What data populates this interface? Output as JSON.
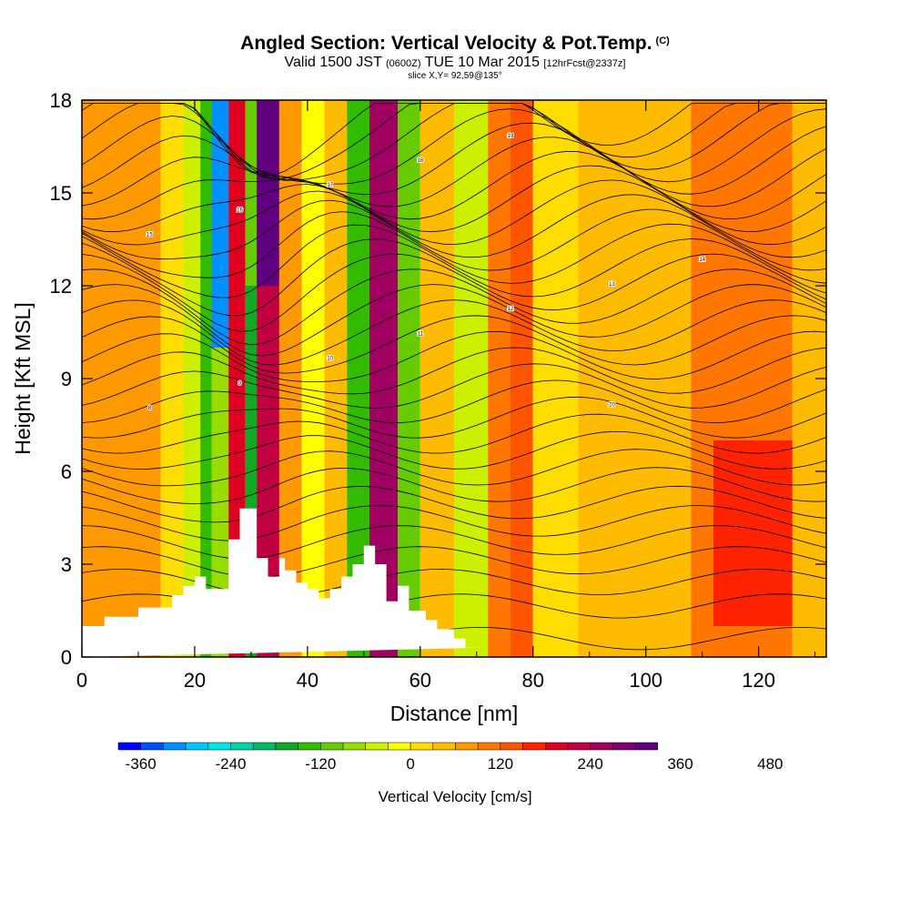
{
  "chart_data": {
    "type": "heatmap",
    "title": "Angled Section: Vertical Velocity & Pot.Temp.",
    "title_tag": "(C)",
    "subtitle_valid": "Valid 1500 JST",
    "subtitle_utc": "(0600Z)",
    "subtitle_date": "TUE 10 Mar 2015",
    "subtitle_fcst": "[12hrFcst@2337z]",
    "subtitle2": "slice X,Y= 92,59@135°",
    "xlabel": "Distance [nm]",
    "ylabel": "Height [Kft MSL]",
    "xlim": [
      0,
      132
    ],
    "ylim": [
      0,
      18
    ],
    "x_ticks": [
      "0",
      "20",
      "40",
      "60",
      "80",
      "100",
      "120"
    ],
    "y_ticks": [
      "0",
      "3",
      "6",
      "9",
      "12",
      "15",
      "18"
    ],
    "colorbar_label": "Vertical Velocity [cm/s]",
    "colorbar_ticks": [
      "-360",
      "-240",
      "-120",
      "0",
      "120",
      "240",
      "360",
      "480"
    ],
    "colorbar_levels": [
      -390,
      -360,
      -330,
      -300,
      -270,
      -240,
      -210,
      -180,
      -150,
      -120,
      -90,
      -60,
      -30,
      0,
      30,
      60,
      90,
      120,
      150,
      180,
      210,
      240,
      270,
      300,
      330,
      360,
      390,
      420,
      450,
      480,
      510
    ],
    "colorbar_colors": [
      "#0000ff",
      "#0050ff",
      "#0090ff",
      "#00c8ff",
      "#00e6e6",
      "#00d2aa",
      "#00bb66",
      "#11a822",
      "#33bb00",
      "#66cc00",
      "#99dd00",
      "#ccf000",
      "#ffff00",
      "#ffdd00",
      "#ffbb00",
      "#ff9900",
      "#ff7700",
      "#ff5500",
      "#ff2200",
      "#e00020",
      "#c00040",
      "#a00060",
      "#800070",
      "#600080"
    ],
    "terrain": {
      "x": [
        0,
        4,
        4,
        10,
        10,
        16,
        16,
        18,
        18,
        20,
        20,
        22,
        22,
        26,
        26,
        28,
        28,
        31,
        31,
        33,
        33,
        35,
        35,
        36,
        36,
        38,
        38,
        40,
        40,
        42,
        42,
        44,
        44,
        46,
        46,
        48,
        48,
        50,
        50,
        52,
        52,
        54,
        54,
        56,
        56,
        58,
        58,
        61,
        61,
        63,
        63,
        66,
        66,
        68,
        68,
        71,
        71,
        132
      ],
      "height": [
        1.0,
        1.0,
        1.3,
        1.3,
        1.6,
        1.6,
        2.0,
        2.0,
        2.3,
        2.3,
        2.6,
        2.6,
        2.2,
        2.2,
        3.8,
        3.8,
        4.8,
        4.8,
        3.2,
        3.2,
        2.6,
        2.6,
        3.2,
        3.2,
        2.8,
        2.8,
        2.4,
        2.4,
        2.2,
        2.2,
        1.9,
        1.9,
        2.2,
        2.2,
        2.6,
        2.6,
        3.0,
        3.0,
        3.6,
        3.6,
        3.0,
        3.0,
        1.8,
        1.8,
        2.3,
        2.3,
        1.5,
        1.5,
        1.2,
        1.2,
        0.9,
        0.9,
        0.6,
        0.6,
        0.3,
        0.3,
        0.3
      ]
    },
    "velocity_cells": [
      {
        "x": [
          0,
          14
        ],
        "y": [
          0,
          18
        ],
        "value": 60
      },
      {
        "x": [
          14,
          18
        ],
        "y": [
          0,
          18
        ],
        "value": 15
      },
      {
        "x": [
          18,
          21
        ],
        "y": [
          0,
          18
        ],
        "value": -60
      },
      {
        "x": [
          21,
          23
        ],
        "y": [
          0,
          18
        ],
        "value": -150
      },
      {
        "x": [
          23,
          26
        ],
        "y": [
          10,
          18
        ],
        "value": -330
      },
      {
        "x": [
          23,
          26
        ],
        "y": [
          0,
          10
        ],
        "value": -90
      },
      {
        "x": [
          26,
          29
        ],
        "y": [
          0,
          18
        ],
        "value": 180
      },
      {
        "x": [
          29,
          31
        ],
        "y": [
          12,
          18
        ],
        "value": -120
      },
      {
        "x": [
          29,
          31
        ],
        "y": [
          0,
          12
        ],
        "value": -180
      },
      {
        "x": [
          31,
          35
        ],
        "y": [
          12,
          18
        ],
        "value": 330
      },
      {
        "x": [
          31,
          35
        ],
        "y": [
          0,
          12
        ],
        "value": 210
      },
      {
        "x": [
          35,
          39
        ],
        "y": [
          0,
          18
        ],
        "value": 60
      },
      {
        "x": [
          39,
          43
        ],
        "y": [
          0,
          18
        ],
        "value": -30
      },
      {
        "x": [
          43,
          47
        ],
        "y": [
          0,
          18
        ],
        "value": 30
      },
      {
        "x": [
          47,
          51
        ],
        "y": [
          0,
          18
        ],
        "value": -150
      },
      {
        "x": [
          51,
          56
        ],
        "y": [
          0,
          18
        ],
        "value": 240
      },
      {
        "x": [
          56,
          60
        ],
        "y": [
          0,
          18
        ],
        "value": -120
      },
      {
        "x": [
          60,
          66
        ],
        "y": [
          0,
          18
        ],
        "value": 30
      },
      {
        "x": [
          66,
          72
        ],
        "y": [
          0,
          18
        ],
        "value": -60
      },
      {
        "x": [
          72,
          76
        ],
        "y": [
          0,
          18
        ],
        "value": 90
      },
      {
        "x": [
          76,
          80
        ],
        "y": [
          0,
          18
        ],
        "value": 120
      },
      {
        "x": [
          80,
          88
        ],
        "y": [
          0,
          18
        ],
        "value": 0
      },
      {
        "x": [
          88,
          108
        ],
        "y": [
          0,
          18
        ],
        "value": 30
      },
      {
        "x": [
          108,
          126
        ],
        "y": [
          0,
          18
        ],
        "value": 90
      },
      {
        "x": [
          112,
          126
        ],
        "y": [
          1,
          7
        ],
        "value": 150
      },
      {
        "x": [
          126,
          132
        ],
        "y": [
          0,
          18
        ],
        "value": 30
      }
    ],
    "theta_contour_labels": [
      "8",
      "9",
      "10",
      "11",
      "12",
      "13",
      "14",
      "15",
      "16",
      "17",
      "18",
      "19",
      "20"
    ]
  }
}
